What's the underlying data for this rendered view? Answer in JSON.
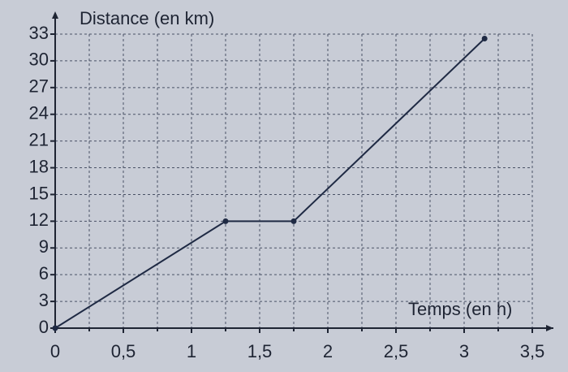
{
  "chart_data": {
    "type": "line",
    "y_label": "Distance (en km)",
    "x_label": "Temps (en h)",
    "x": [
      0,
      1.25,
      1.75,
      3.15
    ],
    "series": [
      {
        "color": "#1f2a44",
        "values": [
          0,
          12,
          12,
          32.5
        ]
      }
    ],
    "xlim": [
      0,
      3.5
    ],
    "ylim": [
      0,
      33
    ],
    "xticks": [
      0,
      {
        "value": 0.5,
        "label": "0,5"
      },
      1,
      {
        "value": 1.5,
        "label": "1,5"
      },
      2,
      {
        "value": 2.5,
        "label": "2,5"
      },
      3,
      {
        "value": 3.5,
        "label": "3,5"
      }
    ],
    "xminorticks": [
      0.25,
      0.75,
      1.25,
      1.75,
      2.25,
      2.75,
      3.25
    ],
    "yticks": [
      0,
      3,
      6,
      9,
      12,
      15,
      18,
      21,
      24,
      27,
      30,
      33
    ],
    "grid": true
  }
}
